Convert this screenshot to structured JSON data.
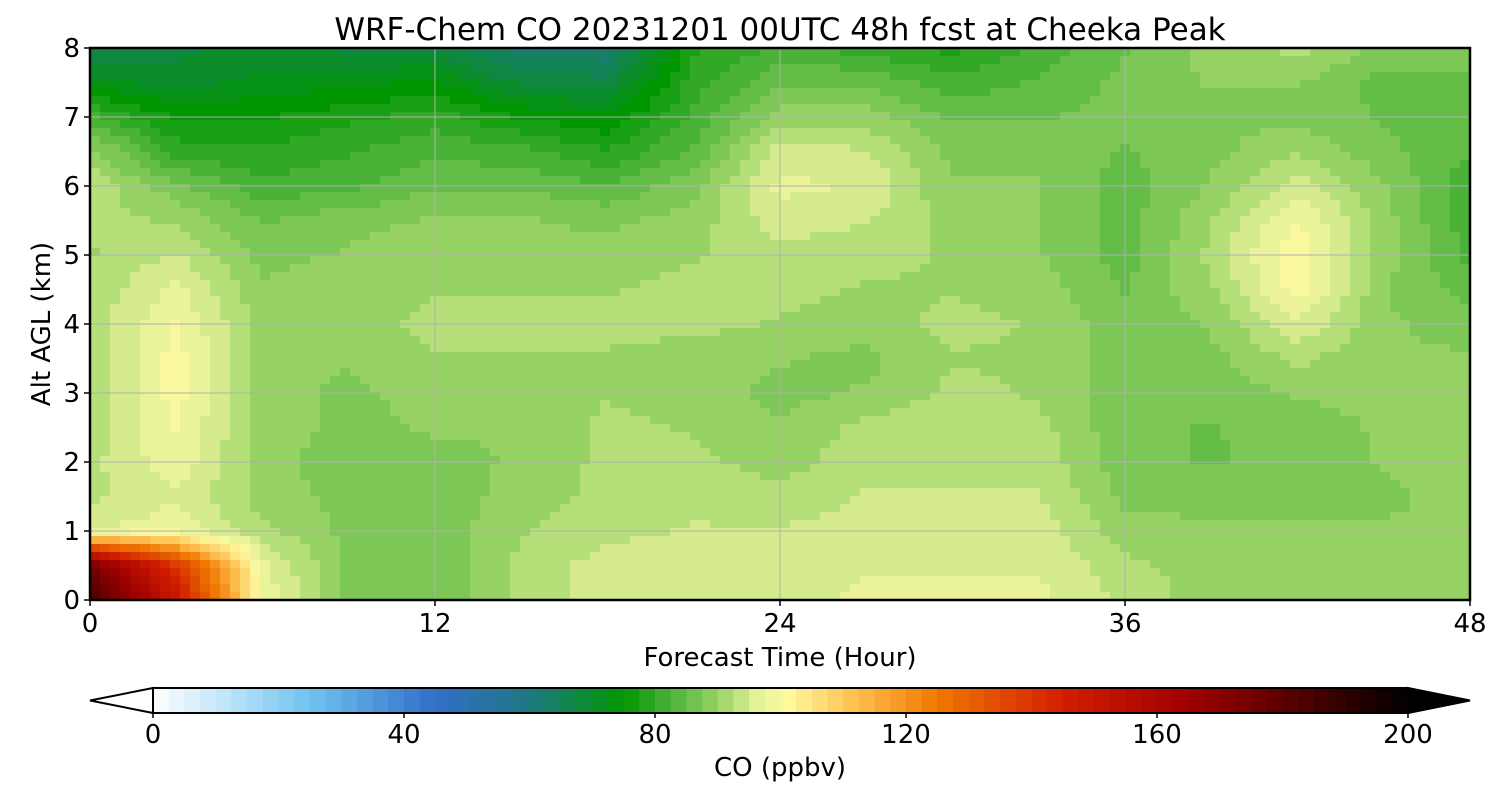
{
  "chart_data": {
    "type": "heatmap",
    "title": "WRF-Chem CO  20231201 00UTC 48h fcst at Cheeka Peak",
    "xlabel": "Forecast Time (Hour)",
    "ylabel": "Alt AGL (km)",
    "xlim": [
      0,
      48
    ],
    "ylim": [
      0,
      8
    ],
    "xticks": [
      0,
      12,
      24,
      36,
      48
    ],
    "yticks": [
      0,
      1,
      2,
      3,
      4,
      5,
      6,
      7,
      8
    ],
    "grid": true,
    "colorbar": {
      "label": "CO  (ppbv)",
      "min": 0,
      "max": 200,
      "ticks": [
        0,
        40,
        80,
        120,
        160,
        200
      ],
      "extend": "both",
      "orientation": "horizontal"
    },
    "x": [
      0,
      3,
      6,
      9,
      12,
      15,
      18,
      21,
      24,
      27,
      30,
      33,
      36,
      39,
      42,
      45,
      48
    ],
    "y": [
      0,
      0.5,
      1,
      1.5,
      2,
      2.5,
      3,
      3.5,
      4,
      4.5,
      5,
      5.5,
      6,
      6.5,
      7,
      7.5,
      8
    ],
    "z": [
      [
        185,
        150,
        98,
        88,
        87,
        92,
        95,
        95,
        95,
        97,
        97,
        97,
        93,
        90,
        90,
        90,
        90
      ],
      [
        175,
        140,
        97,
        88,
        87,
        92,
        95,
        95,
        95,
        96,
        96,
        96,
        92,
        90,
        90,
        90,
        90
      ],
      [
        96,
        98,
        92,
        88,
        87,
        91,
        93,
        94,
        94,
        95,
        95,
        95,
        90,
        89,
        89,
        89,
        90
      ],
      [
        93,
        96,
        90,
        88,
        87,
        90,
        92,
        93,
        92,
        94,
        94,
        94,
        88,
        88,
        88,
        88,
        90
      ],
      [
        93,
        98,
        90,
        87,
        88,
        89,
        92,
        92,
        90,
        93,
        93,
        93,
        87,
        86,
        87,
        89,
        91
      ],
      [
        92,
        99,
        90,
        88,
        89,
        89,
        92,
        91,
        89,
        92,
        93,
        92,
        87,
        86,
        88,
        89,
        91
      ],
      [
        92,
        100,
        90,
        88,
        90,
        90,
        91,
        90,
        88,
        89,
        92,
        91,
        87,
        87,
        89,
        89,
        90
      ],
      [
        92,
        100,
        90,
        89,
        91,
        91,
        91,
        90,
        89,
        88,
        91,
        91,
        87,
        88,
        92,
        89,
        89
      ],
      [
        92,
        99,
        90,
        90,
        92,
        92,
        92,
        92,
        91,
        90,
        92,
        91,
        87,
        89,
        96,
        89,
        88
      ],
      [
        92,
        97,
        89,
        90,
        91,
        91,
        91,
        92,
        92,
        91,
        91,
        90,
        86,
        91,
        100,
        89,
        85
      ],
      [
        91,
        94,
        88,
        89,
        90,
        90,
        90,
        91,
        93,
        92,
        91,
        89,
        85,
        92,
        101,
        90,
        83
      ],
      [
        92,
        91,
        86,
        88,
        89,
        89,
        88,
        90,
        95,
        94,
        90,
        89,
        85,
        91,
        99,
        90,
        82
      ],
      [
        93,
        87,
        82,
        83,
        86,
        86,
        84,
        88,
        97,
        96,
        89,
        89,
        85,
        89,
        95,
        89,
        82
      ],
      [
        90,
        80,
        79,
        81,
        83,
        82,
        79,
        84,
        95,
        94,
        88,
        88,
        86,
        88,
        91,
        87,
        84
      ],
      [
        82,
        76,
        76,
        78,
        80,
        76,
        74,
        82,
        90,
        90,
        86,
        86,
        87,
        88,
        88,
        86,
        85
      ],
      [
        72,
        70,
        72,
        73,
        74,
        68,
        67,
        80,
        86,
        86,
        82,
        84,
        87,
        89,
        89,
        85,
        86
      ],
      [
        66,
        68,
        70,
        68,
        68,
        62,
        62,
        78,
        82,
        80,
        78,
        82,
        86,
        90,
        92,
        88,
        87
      ]
    ]
  }
}
